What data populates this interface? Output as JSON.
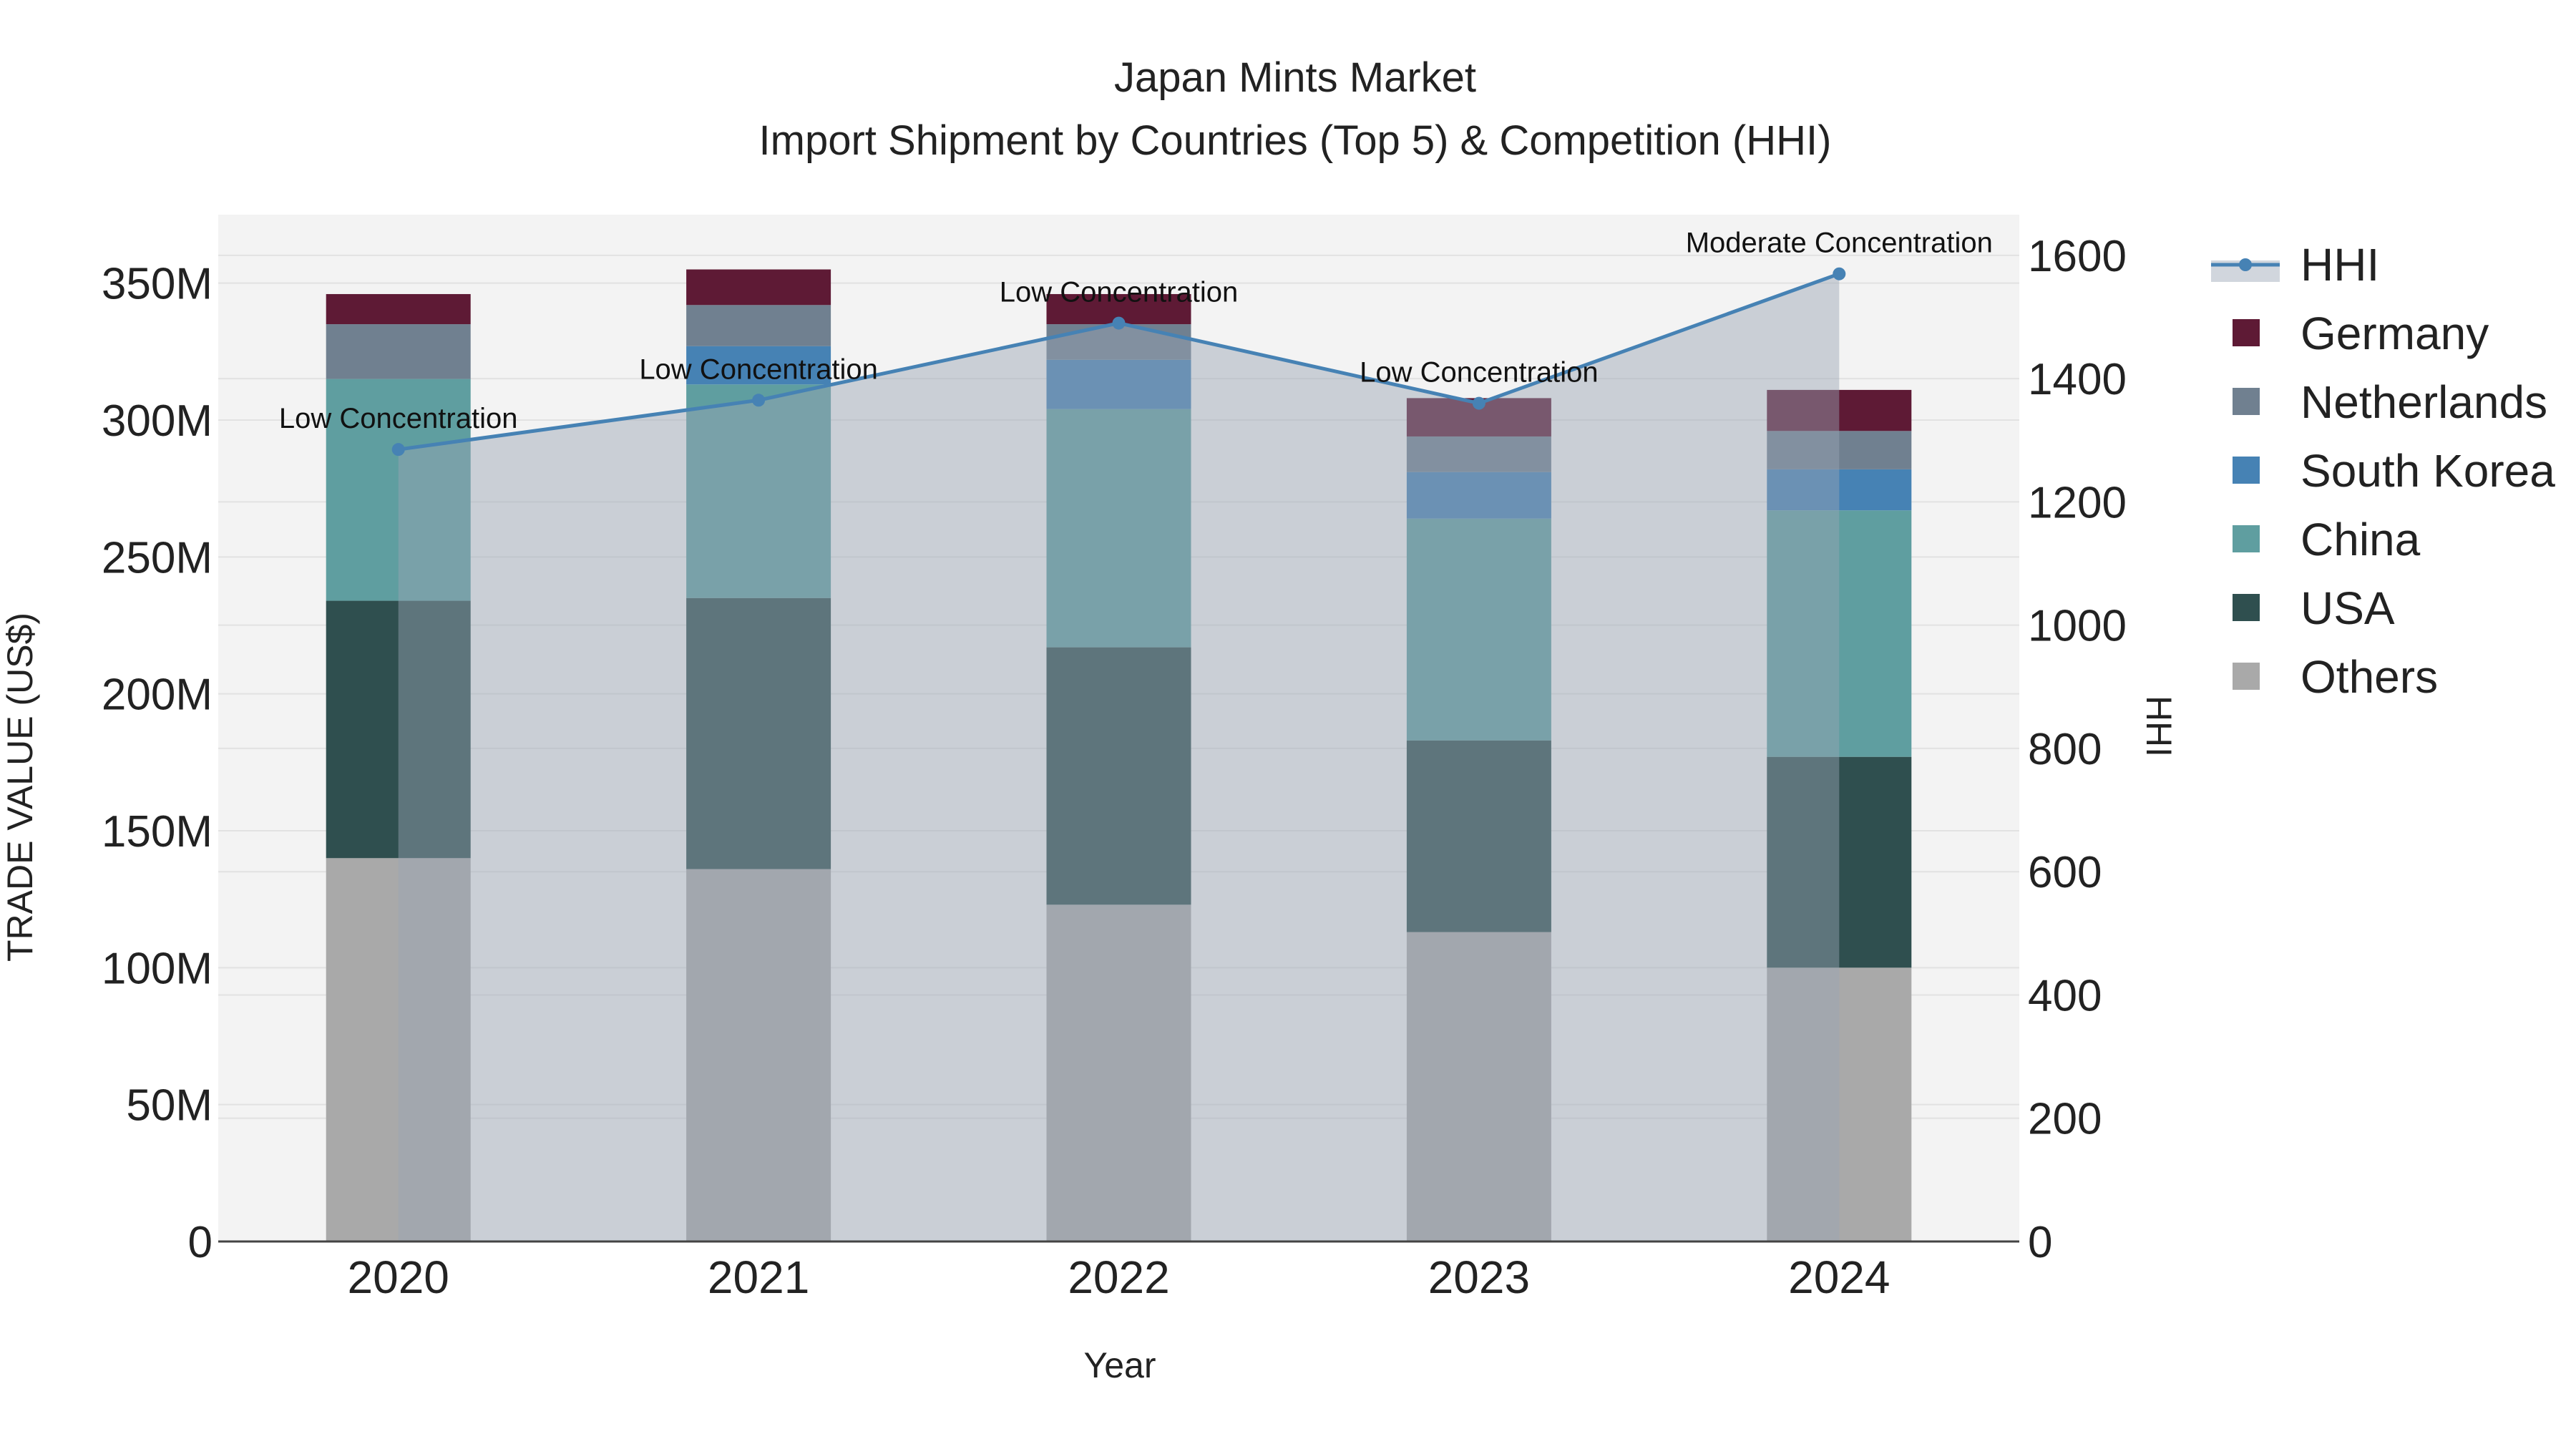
{
  "chart_data": {
    "type": "bar",
    "title": "Japan Mints Market",
    "subtitle": "Import Shipment by Countries (Top 5) & Competition (HHI)",
    "xlabel": "Year",
    "ylabel": "TRADE VALUE (US$)",
    "y2label": "HHI",
    "categories": [
      "2020",
      "2021",
      "2022",
      "2023",
      "2024"
    ],
    "ylim": [
      0,
      375000000
    ],
    "y2lim": [
      0,
      1666
    ],
    "y_ticks": [
      0,
      50000000,
      100000000,
      150000000,
      200000000,
      250000000,
      300000000,
      350000000
    ],
    "y_tick_labels": [
      "0",
      "50M",
      "100M",
      "150M",
      "200M",
      "250M",
      "300M",
      "350M"
    ],
    "y2_ticks": [
      0,
      200,
      400,
      600,
      800,
      1000,
      1200,
      1400,
      1600
    ],
    "y2_tick_labels": [
      "0",
      "200",
      "400",
      "600",
      "800",
      "1000",
      "1200",
      "1400",
      "1600"
    ],
    "series": [
      {
        "name": "Others",
        "color": "#a9a9a9",
        "values": [
          140000000,
          136000000,
          123000000,
          113000000,
          100000000
        ]
      },
      {
        "name": "USA",
        "color": "#2f4f4f",
        "values": [
          94000000,
          99000000,
          94000000,
          70000000,
          77000000
        ]
      },
      {
        "name": "China",
        "color": "#5f9ea0",
        "values": [
          81000000,
          78000000,
          87000000,
          81000000,
          90000000
        ]
      },
      {
        "name": "South Korea",
        "color": "#4682b4",
        "values": [
          0,
          14000000,
          18000000,
          17000000,
          15000000
        ]
      },
      {
        "name": "Netherlands",
        "color": "#708090",
        "values": [
          20000000,
          15000000,
          13000000,
          13000000,
          14000000
        ]
      },
      {
        "name": "Germany",
        "color": "#5e1a35",
        "values": [
          11000000,
          13000000,
          11000000,
          14000000,
          15000000
        ]
      }
    ],
    "hhi": {
      "name": "HHI",
      "color": "#4682b4",
      "values": [
        1285,
        1365,
        1490,
        1360,
        1570
      ],
      "annotations": [
        "Low Concentration",
        "Low Concentration",
        "Low Concentration",
        "Low Concentration",
        "Moderate Concentration"
      ]
    },
    "legend": [
      "HHI",
      "Germany",
      "Netherlands",
      "South Korea",
      "China",
      "USA",
      "Others"
    ],
    "legend_position": "right"
  }
}
